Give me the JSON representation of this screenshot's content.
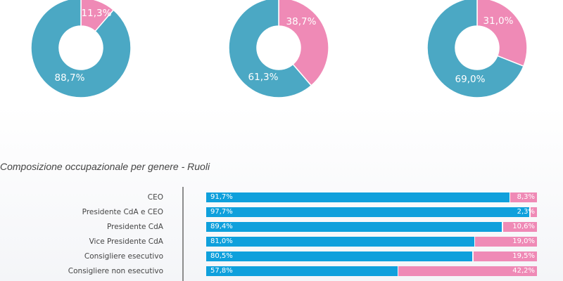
{
  "colors": {
    "male": "#4ba8c4",
    "female": "#ef8ab6",
    "male_bar": "#0fa0dc",
    "female_bar": "#ef8ab6"
  },
  "chart_data": [
    {
      "type": "pie",
      "slices": [
        {
          "label": "11,3%",
          "value": 11.3,
          "color": "#ef8ab6"
        },
        {
          "label": "88,7%",
          "value": 88.7,
          "color": "#4ba8c4"
        }
      ]
    },
    {
      "type": "pie",
      "slices": [
        {
          "label": "38,7%",
          "value": 38.7,
          "color": "#ef8ab6"
        },
        {
          "label": "61,3%",
          "value": 61.3,
          "color": "#4ba8c4"
        }
      ]
    },
    {
      "type": "pie",
      "slices": [
        {
          "label": "31,0%",
          "value": 31.0,
          "color": "#ef8ab6"
        },
        {
          "label": "69,0%",
          "value": 69.0,
          "color": "#4ba8c4"
        }
      ]
    },
    {
      "type": "bar",
      "orientation": "horizontal",
      "stacked": true,
      "title": "Composizione occupazionale per genere - Ruoli",
      "categories": [
        "CEO",
        "Presidente CdA e CEO",
        "Presidente CdA",
        "Vice Presidente CdA",
        "Consigliere esecutivo",
        "Consigliere non esecutivo"
      ],
      "series": [
        {
          "values": [
            91.7,
            97.7,
            89.4,
            81.0,
            80.5,
            57.8
          ],
          "labels": [
            "91,7%",
            "97,7%",
            "89,4%",
            "81,0%",
            "80,5%",
            "57,8%"
          ],
          "color": "#0fa0dc"
        },
        {
          "values": [
            8.3,
            2.3,
            10.6,
            19.0,
            19.5,
            42.2
          ],
          "labels": [
            "8,3%",
            "2,3%",
            "10,6%",
            "19,0%",
            "19,5%",
            "42,2%"
          ],
          "color": "#ef8ab6"
        }
      ],
      "xlim": [
        0,
        100
      ]
    }
  ]
}
